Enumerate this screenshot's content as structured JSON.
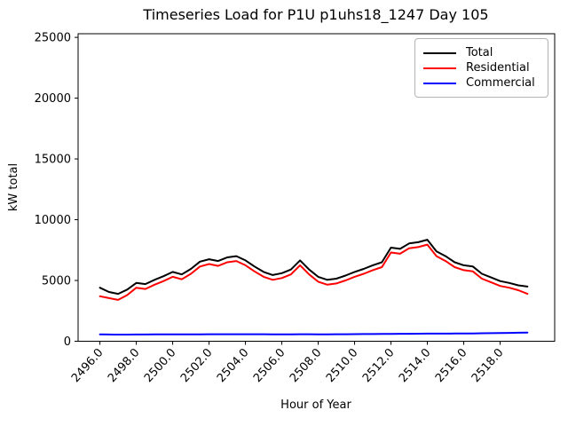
{
  "chart_data": {
    "type": "line",
    "title": "Timeseries Load for P1U p1uhs18_1247  Day 105",
    "xlabel": "Hour of Year",
    "ylabel": "kW total",
    "xlim": [
      2494.8,
      2521.0
    ],
    "ylim": [
      0,
      25300
    ],
    "grid": false,
    "xticks": [
      2496.0,
      2498.0,
      2500.0,
      2502.0,
      2504.0,
      2506.0,
      2508.0,
      2510.0,
      2512.0,
      2514.0,
      2516.0,
      2518.0
    ],
    "xtick_labels": [
      "2496.0",
      "2498.0",
      "2500.0",
      "2502.0",
      "2504.0",
      "2506.0",
      "2508.0",
      "2510.0",
      "2512.0",
      "2514.0",
      "2516.0",
      "2518.0"
    ],
    "yticks": [
      0,
      5000,
      10000,
      15000,
      20000,
      25000
    ],
    "ytick_labels": [
      "0",
      "5000",
      "10000",
      "15000",
      "20000",
      "25000"
    ],
    "legend": {
      "position": "upper right",
      "entries": [
        {
          "label": "Total",
          "color": "#000000"
        },
        {
          "label": "Residential",
          "color": "#ff0000"
        },
        {
          "label": "Commercial",
          "color": "#0000ff"
        }
      ]
    },
    "x": [
      2496.0,
      2496.5,
      2497.0,
      2497.5,
      2498.0,
      2498.5,
      2499.0,
      2499.5,
      2500.0,
      2500.5,
      2501.0,
      2501.5,
      2502.0,
      2502.5,
      2503.0,
      2503.5,
      2504.0,
      2504.5,
      2505.0,
      2505.5,
      2506.0,
      2506.5,
      2507.0,
      2507.5,
      2508.0,
      2508.5,
      2509.0,
      2509.5,
      2510.0,
      2510.5,
      2511.0,
      2511.5,
      2512.0,
      2512.5,
      2513.0,
      2513.5,
      2514.0,
      2514.5,
      2515.0,
      2515.5,
      2516.0,
      2516.5,
      2517.0,
      2517.5,
      2518.0,
      2518.5,
      2519.0,
      2519.5
    ],
    "series": [
      {
        "name": "Total",
        "color": "#000000",
        "values": [
          4400,
          4050,
          3900,
          4250,
          4800,
          4700,
          5050,
          5350,
          5700,
          5500,
          5950,
          6550,
          6750,
          6600,
          6900,
          7000,
          6650,
          6150,
          5700,
          5450,
          5600,
          5900,
          6650,
          5900,
          5300,
          5050,
          5150,
          5400,
          5700,
          5950,
          6250,
          6500,
          7700,
          7600,
          8050,
          8150,
          8350,
          7400,
          7000,
          6500,
          6250,
          6150,
          5550,
          5250,
          4950,
          4800,
          4600,
          4500
        ]
      },
      {
        "name": "Residential",
        "color": "#ff0000",
        "values": [
          3700,
          3550,
          3400,
          3800,
          4400,
          4300,
          4650,
          4950,
          5300,
          5100,
          5550,
          6150,
          6350,
          6200,
          6500,
          6600,
          6250,
          5750,
          5300,
          5050,
          5200,
          5500,
          6250,
          5500,
          4900,
          4650,
          4750,
          5000,
          5300,
          5550,
          5850,
          6100,
          7300,
          7200,
          7650,
          7750,
          7950,
          7000,
          6600,
          6100,
          5850,
          5750,
          5150,
          4850,
          4550,
          4400,
          4200,
          3900
        ]
      },
      {
        "name": "Commercial",
        "color": "#0000ff",
        "values": [
          560,
          555,
          550,
          550,
          555,
          555,
          560,
          560,
          565,
          565,
          570,
          570,
          575,
          575,
          580,
          580,
          580,
          575,
          575,
          570,
          570,
          570,
          575,
          575,
          570,
          570,
          575,
          580,
          585,
          590,
          595,
          600,
          605,
          610,
          615,
          620,
          625,
          625,
          630,
          635,
          640,
          645,
          655,
          665,
          675,
          685,
          700,
          710
        ]
      }
    ]
  }
}
